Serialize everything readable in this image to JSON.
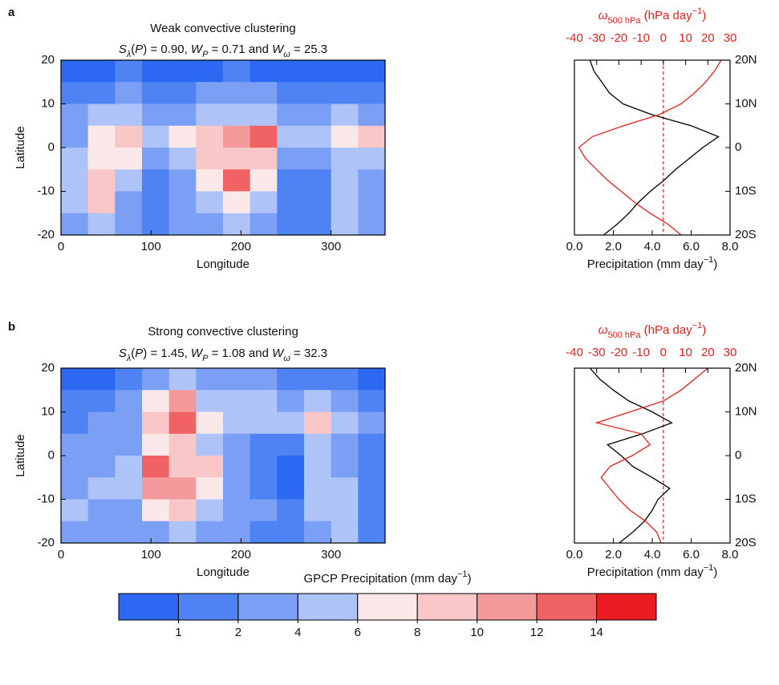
{
  "chart_data": [
    {
      "type": "heatmap",
      "panel_label": "a",
      "title": "Weak convective clustering",
      "subtitle_parts": [
        "S",
        "λ",
        "(",
        "P",
        ") = 0.90, ",
        "W",
        "P",
        " = 0.71 and ",
        "W",
        "ω",
        " = 25.3"
      ],
      "xlabel": "Longitude",
      "ylabel": "Latitude",
      "x": [
        15,
        45,
        75,
        105,
        135,
        165,
        195,
        225,
        255,
        285,
        315,
        345
      ],
      "y": [
        17.5,
        12.5,
        7.5,
        2.5,
        -2.5,
        -7.5,
        -12.5,
        -17.5
      ],
      "z": [
        [
          0.5,
          0.5,
          1.5,
          0.8,
          0.5,
          0.8,
          1,
          0.8,
          0.5,
          0.5,
          0.6,
          0.5
        ],
        [
          1,
          1.5,
          3,
          1.5,
          1,
          2,
          2.5,
          2,
          1,
          1,
          1.5,
          1
        ],
        [
          2,
          4,
          5,
          3,
          3,
          5,
          5,
          5,
          2,
          3,
          4,
          3
        ],
        [
          3,
          6,
          8,
          4,
          6,
          8,
          10,
          12,
          5,
          4,
          6,
          9
        ],
        [
          4,
          7,
          6,
          3,
          5,
          8,
          9,
          8,
          3,
          2,
          5,
          4
        ],
        [
          5,
          9,
          4,
          1,
          3,
          7,
          12,
          6,
          1,
          1,
          4,
          3
        ],
        [
          4,
          8,
          3,
          1,
          3,
          5,
          7,
          4,
          1,
          1,
          5,
          2
        ],
        [
          2,
          4,
          2,
          1,
          2,
          3,
          4,
          2,
          1,
          1,
          4,
          2
        ]
      ],
      "xlim": [
        0,
        360
      ],
      "ylim": [
        -20,
        20
      ],
      "xticks": [
        0,
        100,
        200,
        300
      ],
      "yticks": [
        -20,
        -10,
        0,
        10,
        20
      ]
    },
    {
      "type": "profile",
      "xlabel_parts": [
        "Precipitation (mm day",
        "−1",
        ")"
      ],
      "x2label_parts": [
        "ω",
        "500 hPa",
        " (hPa day",
        "−1",
        ")"
      ],
      "xlim": [
        0,
        8
      ],
      "xticks": [
        {
          "value": 0,
          "label": "0.0"
        },
        {
          "value": 2,
          "label": "2.0"
        },
        {
          "value": 4,
          "label": "4.0"
        },
        {
          "value": 6,
          "label": "6.0"
        },
        {
          "value": 8,
          "label": "8.0"
        }
      ],
      "x2lim": [
        -40,
        30
      ],
      "x2ticks": [
        -40,
        -30,
        -20,
        -10,
        0,
        10,
        20,
        30
      ],
      "x2color": "#e8201c",
      "ylim": [
        -20,
        20
      ],
      "yticks": [
        {
          "value": -20,
          "label": "20S"
        },
        {
          "value": -10,
          "label": "10S"
        },
        0,
        {
          "value": 10,
          "label": "10N"
        },
        {
          "value": 20,
          "label": "20N"
        }
      ],
      "reference_x2": 0,
      "y": [
        -20,
        -17.5,
        -15,
        -12.5,
        -10,
        -7.5,
        -5,
        -2.5,
        0,
        2.5,
        5,
        7.5,
        10,
        12.5,
        15,
        17.5,
        20
      ],
      "series": [
        {
          "color": "#000000",
          "values": [
            1.5,
            2.2,
            2.8,
            3.3,
            3.9,
            4.6,
            5.2,
            5.9,
            6.6,
            7.4,
            6.0,
            4.0,
            2.5,
            1.8,
            1.4,
            1.0,
            0.8
          ]
        },
        {
          "color": "#e8201c",
          "axis": "x2",
          "values": [
            8,
            2,
            -6,
            -13,
            -19,
            -25,
            -30,
            -35,
            -38,
            -32,
            -18,
            -2,
            8,
            14,
            19,
            23,
            26
          ]
        }
      ]
    },
    {
      "type": "heatmap",
      "panel_label": "b",
      "title": "Strong convective clustering",
      "subtitle_parts": [
        "S",
        "λ",
        "(",
        "P",
        ") = 1.45, ",
        "W",
        "P",
        " = 1.08 and ",
        "W",
        "ω",
        " = 32.3"
      ],
      "xlabel": "Longitude",
      "ylabel": "Latitude",
      "x": [
        15,
        45,
        75,
        105,
        135,
        165,
        195,
        225,
        255,
        285,
        315,
        345
      ],
      "y": [
        17.5,
        12.5,
        7.5,
        2.5,
        -2.5,
        -7.5,
        -12.5,
        -17.5
      ],
      "z": [
        [
          0.5,
          0.5,
          1,
          3,
          4,
          3,
          2,
          2,
          1,
          1,
          1,
          0.5
        ],
        [
          1,
          1,
          2,
          6,
          10,
          5,
          4,
          4,
          3,
          4,
          2,
          1
        ],
        [
          1.5,
          2,
          3,
          8,
          12,
          6,
          5,
          5,
          4,
          8,
          4,
          2
        ],
        [
          2,
          2,
          3,
          7,
          8,
          5,
          3,
          1,
          1,
          5,
          3,
          1
        ],
        [
          2,
          3,
          4,
          12,
          8,
          9,
          3,
          1,
          0.5,
          5,
          3,
          1
        ],
        [
          3,
          4,
          4,
          10,
          10,
          6,
          3,
          1,
          0.5,
          4,
          4,
          1
        ],
        [
          4,
          3,
          3,
          7,
          8,
          4,
          3,
          2,
          1,
          5,
          4,
          1
        ],
        [
          2,
          3,
          2,
          3,
          4,
          2,
          2,
          1,
          1,
          3,
          5,
          1
        ]
      ],
      "xlim": [
        0,
        360
      ],
      "ylim": [
        -20,
        20
      ],
      "xticks": [
        0,
        100,
        200,
        300
      ],
      "yticks": [
        -20,
        -10,
        0,
        10,
        20
      ]
    },
    {
      "type": "profile",
      "xlabel_parts": [
        "Precipitation (mm day",
        "−1",
        ")"
      ],
      "x2label_parts": [
        "ω",
        "500 hPa",
        " (hPa day",
        "−1",
        ")"
      ],
      "xlim": [
        0,
        8
      ],
      "xticks": [
        {
          "value": 0,
          "label": "0.0"
        },
        {
          "value": 2,
          "label": "2.0"
        },
        {
          "value": 4,
          "label": "4.0"
        },
        {
          "value": 6,
          "label": "6.0"
        },
        {
          "value": 8,
          "label": "8.0"
        }
      ],
      "x2lim": [
        -40,
        30
      ],
      "x2ticks": [
        -40,
        -30,
        -20,
        -10,
        0,
        10,
        20,
        30
      ],
      "x2color": "#e8201c",
      "ylim": [
        -20,
        20
      ],
      "yticks": [
        {
          "value": -20,
          "label": "20S"
        },
        {
          "value": -10,
          "label": "10S"
        },
        0,
        {
          "value": 10,
          "label": "10N"
        },
        {
          "value": 20,
          "label": "20N"
        }
      ],
      "reference_x2": 0,
      "y": [
        -20,
        -17.5,
        -15,
        -12.5,
        -10,
        -7.5,
        -5,
        -2.5,
        0,
        2.5,
        5,
        7.5,
        10,
        12.5,
        15,
        17.5,
        20
      ],
      "series": [
        {
          "color": "#000000",
          "values": [
            2.3,
            3.0,
            3.6,
            4.0,
            4.3,
            4.9,
            4.0,
            3.0,
            2.4,
            1.7,
            3.5,
            5.0,
            4.0,
            2.8,
            2.0,
            1.3,
            0.8
          ]
        },
        {
          "color": "#e8201c",
          "axis": "x2",
          "values": [
            -1,
            -3,
            -8,
            -15,
            -20,
            -24,
            -28,
            -24,
            -14,
            -6,
            -10,
            -30,
            -15,
            0,
            8,
            14,
            20
          ]
        }
      ]
    },
    {
      "type": "colorbar",
      "title_parts": [
        "GPCP Precipitation (mm day",
        "−1",
        ")"
      ],
      "levels": [
        1,
        2,
        4,
        6,
        8,
        10,
        12,
        14
      ],
      "colors": [
        "#2d68f3",
        "#4f82f3",
        "#7a9ff4",
        "#aec3f7",
        "#fbe9ea",
        "#f9c7c8",
        "#f49a9c",
        "#f06264",
        "#ea1c22"
      ]
    }
  ]
}
